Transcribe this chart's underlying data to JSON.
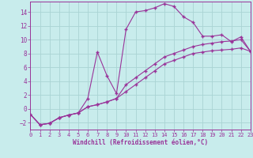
{
  "xlabel": "Windchill (Refroidissement éolien,°C)",
  "background_color": "#c8ecec",
  "grid_color": "#aad4d4",
  "line_color": "#993399",
  "x_min": 0,
  "x_max": 23,
  "y_min": -3,
  "y_max": 15.5,
  "yticks": [
    -2,
    0,
    2,
    4,
    6,
    8,
    10,
    12,
    14
  ],
  "xticks": [
    0,
    1,
    2,
    3,
    4,
    5,
    6,
    7,
    8,
    9,
    10,
    11,
    12,
    13,
    14,
    15,
    16,
    17,
    18,
    19,
    20,
    21,
    22,
    23
  ],
  "line1_x": [
    0,
    1,
    2,
    3,
    4,
    5,
    6,
    7,
    8,
    9,
    10,
    11,
    12,
    13,
    14,
    15,
    16,
    17,
    18,
    19,
    20,
    21,
    22,
    23
  ],
  "line1_y": [
    -0.8,
    -2.3,
    -2.1,
    -1.3,
    -0.9,
    -0.6,
    1.5,
    8.2,
    4.8,
    2.2,
    11.5,
    14.0,
    14.2,
    14.6,
    15.2,
    14.8,
    13.3,
    12.5,
    10.5,
    10.5,
    10.7,
    9.7,
    10.4,
    8.3
  ],
  "line2_x": [
    0,
    1,
    2,
    3,
    4,
    5,
    6,
    7,
    8,
    9,
    10,
    11,
    12,
    13,
    14,
    15,
    16,
    17,
    18,
    19,
    20,
    21,
    22,
    23
  ],
  "line2_y": [
    -0.8,
    -2.3,
    -2.1,
    -1.3,
    -0.9,
    -0.6,
    0.3,
    0.6,
    1.0,
    1.5,
    2.5,
    3.5,
    4.5,
    5.5,
    6.5,
    7.0,
    7.5,
    8.0,
    8.2,
    8.4,
    8.5,
    8.6,
    8.8,
    8.3
  ],
  "line3_x": [
    0,
    1,
    2,
    3,
    4,
    5,
    6,
    7,
    8,
    9,
    10,
    11,
    12,
    13,
    14,
    15,
    16,
    17,
    18,
    19,
    20,
    21,
    22,
    23
  ],
  "line3_y": [
    -0.8,
    -2.3,
    -2.1,
    -1.3,
    -0.9,
    -0.6,
    0.3,
    0.6,
    1.0,
    1.5,
    3.5,
    4.5,
    5.5,
    6.5,
    7.5,
    8.0,
    8.5,
    9.0,
    9.3,
    9.5,
    9.7,
    9.8,
    10.0,
    8.3
  ],
  "tick_fontsize": 5,
  "xlabel_fontsize": 5.5,
  "font_family": "monospace"
}
